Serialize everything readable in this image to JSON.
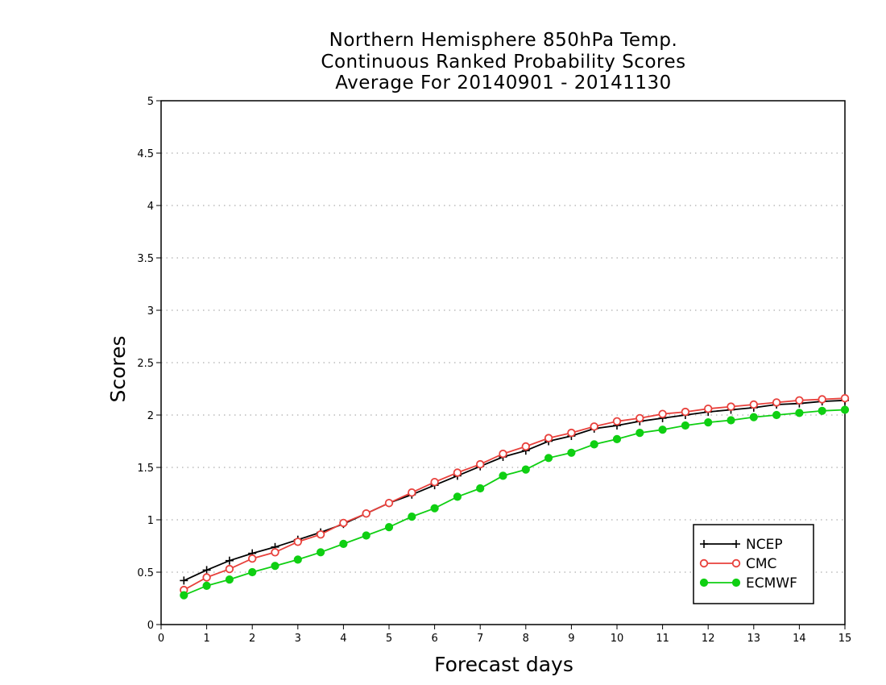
{
  "chart_data": {
    "type": "line",
    "title_lines": [
      "Northern Hemisphere 850hPa Temp.",
      "Continuous Ranked Probability Scores",
      "Average For 20140901 - 20141130"
    ],
    "xlabel": "Forecast days",
    "ylabel": "Scores",
    "xlim": [
      0,
      15
    ],
    "ylim": [
      0,
      5
    ],
    "x_ticks": [
      "0",
      "1",
      "2",
      "3",
      "4",
      "5",
      "6",
      "7",
      "8",
      "9",
      "10",
      "11",
      "12",
      "13",
      "14",
      "15"
    ],
    "y_ticks": [
      "0",
      "0.5",
      "1",
      "1.5",
      "2",
      "2.5",
      "3",
      "3.5",
      "4",
      "4.5",
      "5"
    ],
    "grid": "horizontal dotted",
    "legend_position": "bottom-right",
    "x": [
      0.5,
      1,
      1.5,
      2,
      2.5,
      3,
      3.5,
      4,
      4.5,
      5,
      5.5,
      6,
      6.5,
      7,
      7.5,
      8,
      8.5,
      9,
      9.5,
      10,
      10.5,
      11,
      11.5,
      12,
      12.5,
      13,
      13.5,
      14,
      14.5,
      15
    ],
    "series": [
      {
        "name": "NCEP",
        "color": "#000000",
        "marker": "plus",
        "values": [
          0.42,
          0.52,
          0.61,
          0.68,
          0.74,
          0.81,
          0.88,
          0.96,
          1.06,
          1.16,
          1.24,
          1.33,
          1.42,
          1.51,
          1.6,
          1.66,
          1.75,
          1.8,
          1.87,
          1.9,
          1.94,
          1.97,
          2.0,
          2.03,
          2.05,
          2.07,
          2.1,
          2.11,
          2.13,
          2.14
        ]
      },
      {
        "name": "CMC",
        "color": "#e8413c",
        "marker": "open-circle",
        "values": [
          0.33,
          0.45,
          0.53,
          0.63,
          0.69,
          0.79,
          0.86,
          0.97,
          1.06,
          1.16,
          1.26,
          1.36,
          1.45,
          1.53,
          1.63,
          1.7,
          1.78,
          1.83,
          1.89,
          1.94,
          1.97,
          2.01,
          2.03,
          2.06,
          2.08,
          2.1,
          2.12,
          2.14,
          2.15,
          2.16
        ]
      },
      {
        "name": "ECMWF",
        "color": "#0fcf12",
        "marker": "filled-circle",
        "values": [
          0.28,
          0.37,
          0.43,
          0.5,
          0.56,
          0.62,
          0.69,
          0.77,
          0.85,
          0.93,
          1.03,
          1.11,
          1.22,
          1.3,
          1.42,
          1.48,
          1.59,
          1.64,
          1.72,
          1.77,
          1.83,
          1.86,
          1.9,
          1.93,
          1.95,
          1.98,
          2.0,
          2.02,
          2.04,
          2.05
        ]
      }
    ]
  }
}
